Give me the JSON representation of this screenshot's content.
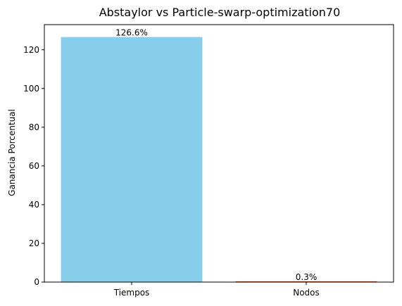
{
  "chart_data": {
    "type": "bar",
    "title": "Abstaylor vs Particle-swarp-optimization70",
    "xlabel": "",
    "ylabel": "Ganancia Porcentual",
    "categories": [
      "Tiempos",
      "Nodos"
    ],
    "values": [
      126.6,
      0.3
    ],
    "data_labels": [
      "126.6%",
      "0.3%"
    ],
    "colors": [
      "#87ceeb",
      "#cc3300"
    ],
    "ylim": [
      0,
      133
    ],
    "yticks": [
      0,
      20,
      40,
      60,
      80,
      100,
      120
    ],
    "ytick_labels": [
      "0",
      "20",
      "40",
      "60",
      "80",
      "100",
      "120"
    ],
    "grid": false,
    "legend": "none"
  }
}
